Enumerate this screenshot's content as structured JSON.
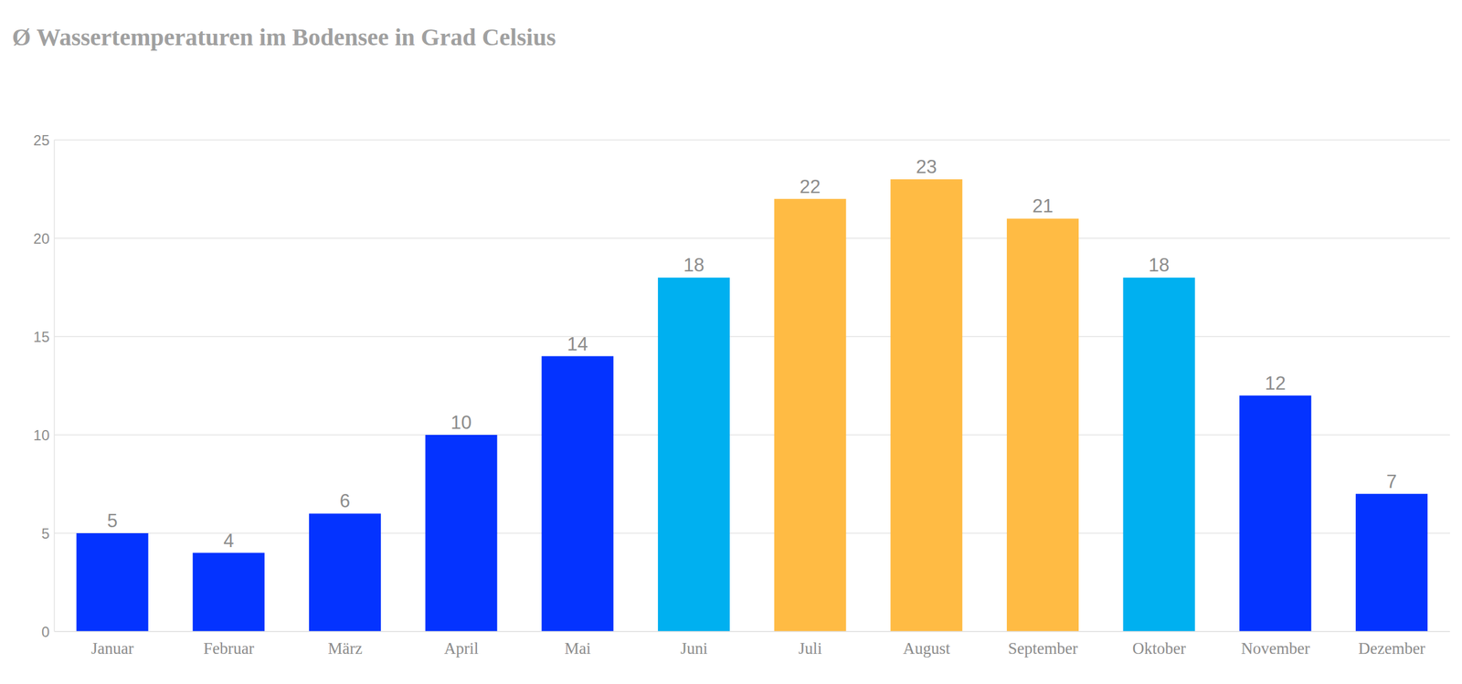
{
  "chart_data": {
    "type": "bar",
    "title": "Ø Wassertemperaturen im Bodensee in Grad Celsius",
    "categories": [
      "Januar",
      "Februar",
      "März",
      "April",
      "Mai",
      "Juni",
      "Juli",
      "August",
      "September",
      "Oktober",
      "November",
      "Dezember"
    ],
    "values": [
      5,
      4,
      6,
      10,
      14,
      18,
      22,
      23,
      21,
      18,
      12,
      7
    ],
    "colors": [
      "#0433ff",
      "#0433ff",
      "#0433ff",
      "#0433ff",
      "#0433ff",
      "#00b0f0",
      "#ffbb44",
      "#ffbb44",
      "#ffbb44",
      "#00b0f0",
      "#0433ff",
      "#0433ff"
    ],
    "ylim": [
      0,
      25
    ],
    "yticks": [
      0,
      5,
      10,
      15,
      20,
      25
    ],
    "grid": true,
    "data_labels": true
  }
}
